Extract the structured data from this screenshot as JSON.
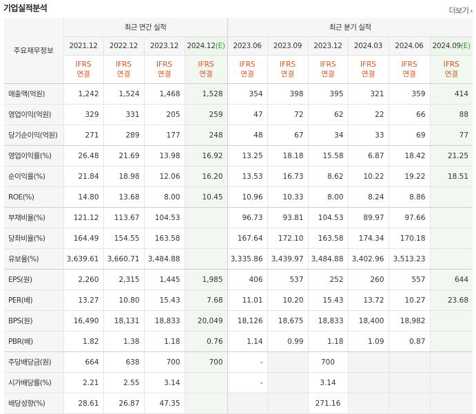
{
  "header": {
    "title": "기업실적분석",
    "more_label": "더보기"
  },
  "table": {
    "corner_label": "주요재무정보",
    "annual_group_label": "최근 연간 실적",
    "quarter_group_label": "최근 분기 실적",
    "annual_periods": [
      "2021.12",
      "2022.12",
      "2023.12",
      "2024.12(E)"
    ],
    "quarter_periods": [
      "2023.06",
      "2023.09",
      "2023.12",
      "2024.03",
      "2024.06",
      "2024.09(E)"
    ],
    "standard_line1": "IFRS",
    "standard_line2": "연결",
    "rows": [
      {
        "label": "매출액(억원)",
        "values": [
          "1,242",
          "1,524",
          "1,468",
          "1,528",
          "354",
          "398",
          "395",
          "321",
          "359",
          "414"
        ]
      },
      {
        "label": "영업이익(억원)",
        "values": [
          "329",
          "331",
          "205",
          "259",
          "47",
          "72",
          "62",
          "22",
          "66",
          "88"
        ]
      },
      {
        "label": "당기순이익(억원)",
        "values": [
          "271",
          "289",
          "177",
          "248",
          "48",
          "67",
          "34",
          "33",
          "69",
          "77"
        ]
      },
      {
        "label": "영업이익률(%)",
        "values": [
          "26.48",
          "21.69",
          "13.98",
          "16.92",
          "13.25",
          "18.18",
          "15.58",
          "6.87",
          "18.42",
          "21.25"
        ]
      },
      {
        "label": "순이익률(%)",
        "values": [
          "21.84",
          "18.98",
          "12.06",
          "16.20",
          "13.53",
          "16.73",
          "8.62",
          "10.22",
          "19.22",
          "18.51"
        ]
      },
      {
        "label": "ROE(%)",
        "values": [
          "14.80",
          "13.68",
          "8.00",
          "10.45",
          "10.96",
          "10.33",
          "8.00",
          "8.24",
          "8.86",
          ""
        ]
      },
      {
        "label": "부채비율(%)",
        "values": [
          "121.12",
          "113.67",
          "104.53",
          "",
          "96.73",
          "93.81",
          "104.53",
          "89.97",
          "97.66",
          ""
        ]
      },
      {
        "label": "당좌비율(%)",
        "values": [
          "164.49",
          "154.55",
          "163.58",
          "",
          "167.64",
          "172.10",
          "163.58",
          "174.34",
          "170.18",
          ""
        ]
      },
      {
        "label": "유보율(%)",
        "values": [
          "3,639.61",
          "3,660.71",
          "3,484.88",
          "",
          "3,335.86",
          "3,439.97",
          "3,484.88",
          "3,402.96",
          "3,513.23",
          ""
        ]
      },
      {
        "label": "EPS(원)",
        "values": [
          "2,260",
          "2,315",
          "1,445",
          "1,985",
          "406",
          "537",
          "252",
          "260",
          "557",
          "644"
        ]
      },
      {
        "label": "PER(배)",
        "values": [
          "13.27",
          "10.80",
          "15.43",
          "7.68",
          "11.01",
          "10.20",
          "15.43",
          "13.72",
          "10.27",
          "23.68"
        ]
      },
      {
        "label": "BPS(원)",
        "values": [
          "16,490",
          "18,131",
          "18,833",
          "20,049",
          "18,126",
          "18,675",
          "18,833",
          "18,400",
          "18,982",
          ""
        ]
      },
      {
        "label": "PBR(배)",
        "values": [
          "1.82",
          "1.38",
          "1.18",
          "0.76",
          "1.14",
          "0.99",
          "1.18",
          "1.09",
          "0.87",
          ""
        ]
      },
      {
        "label": "주당배당금(원)",
        "values": [
          "664",
          "638",
          "700",
          "700",
          "-",
          "",
          "700",
          "",
          "",
          ""
        ]
      },
      {
        "label": "시가배당률(%)",
        "values": [
          "2.21",
          "2.55",
          "3.14",
          "",
          "-",
          "",
          "3.14",
          "",
          "",
          ""
        ]
      },
      {
        "label": "배당성향(%)",
        "values": [
          "28.61",
          "26.87",
          "47.35",
          "",
          "",
          "",
          "271.16",
          "",
          "",
          ""
        ]
      }
    ]
  }
}
